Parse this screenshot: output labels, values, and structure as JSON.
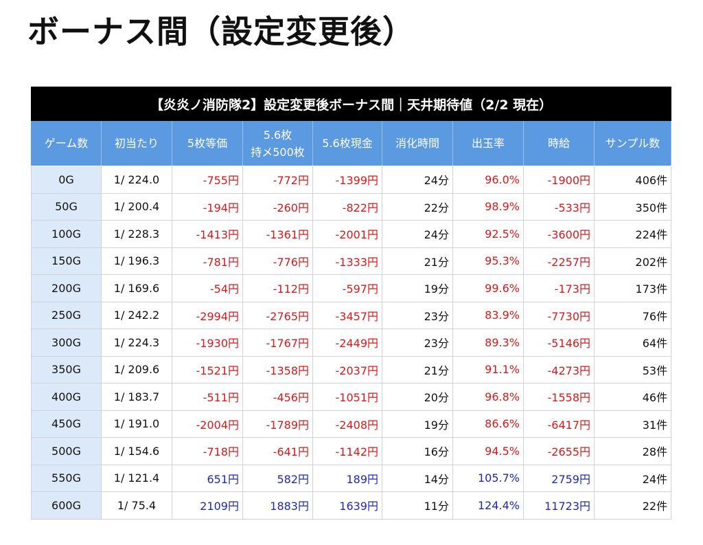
{
  "title": "ボーナス間（設定変更後）",
  "table": {
    "caption": "【炎炎ノ消防隊2】設定変更後ボーナス間｜天井期待値（2/2 現在）",
    "headers": [
      {
        "line1": "ゲーム数",
        "line2": ""
      },
      {
        "line1": "初当たり",
        "line2": ""
      },
      {
        "line1": "5枚等価",
        "line2": ""
      },
      {
        "line1": "5.6枚",
        "line2": "持メ500枚"
      },
      {
        "line1": "5.6枚現金",
        "line2": ""
      },
      {
        "line1": "消化時間",
        "line2": ""
      },
      {
        "line1": "出玉率",
        "line2": ""
      },
      {
        "line1": "時給",
        "line2": ""
      },
      {
        "line1": "サンプル数",
        "line2": ""
      }
    ],
    "rows": [
      {
        "game": "0G",
        "hit": "1/ 224.0",
        "eq5": "-755円",
        "m56": "-772円",
        "cash56": "-1399円",
        "time": "24分",
        "rate": "96.0%",
        "wage": "-1900円",
        "samples": "406件",
        "sign": "neg"
      },
      {
        "game": "50G",
        "hit": "1/ 200.4",
        "eq5": "-194円",
        "m56": "-260円",
        "cash56": "-822円",
        "time": "22分",
        "rate": "98.9%",
        "wage": "-533円",
        "samples": "350件",
        "sign": "neg"
      },
      {
        "game": "100G",
        "hit": "1/ 228.3",
        "eq5": "-1413円",
        "m56": "-1361円",
        "cash56": "-2001円",
        "time": "24分",
        "rate": "92.5%",
        "wage": "-3600円",
        "samples": "224件",
        "sign": "neg"
      },
      {
        "game": "150G",
        "hit": "1/ 196.3",
        "eq5": "-781円",
        "m56": "-776円",
        "cash56": "-1333円",
        "time": "21分",
        "rate": "95.3%",
        "wage": "-2257円",
        "samples": "202件",
        "sign": "neg"
      },
      {
        "game": "200G",
        "hit": "1/ 169.6",
        "eq5": "-54円",
        "m56": "-112円",
        "cash56": "-597円",
        "time": "19分",
        "rate": "99.6%",
        "wage": "-173円",
        "samples": "173件",
        "sign": "neg"
      },
      {
        "game": "250G",
        "hit": "1/ 242.2",
        "eq5": "-2994円",
        "m56": "-2765円",
        "cash56": "-3457円",
        "time": "23分",
        "rate": "83.9%",
        "wage": "-7730円",
        "samples": "76件",
        "sign": "neg"
      },
      {
        "game": "300G",
        "hit": "1/ 224.3",
        "eq5": "-1930円",
        "m56": "-1767円",
        "cash56": "-2449円",
        "time": "23分",
        "rate": "89.3%",
        "wage": "-5146円",
        "samples": "64件",
        "sign": "neg"
      },
      {
        "game": "350G",
        "hit": "1/ 209.6",
        "eq5": "-1521円",
        "m56": "-1358円",
        "cash56": "-2037円",
        "time": "21分",
        "rate": "91.1%",
        "wage": "-4273円",
        "samples": "53件",
        "sign": "neg"
      },
      {
        "game": "400G",
        "hit": "1/ 183.7",
        "eq5": "-511円",
        "m56": "-456円",
        "cash56": "-1051円",
        "time": "20分",
        "rate": "96.8%",
        "wage": "-1558円",
        "samples": "46件",
        "sign": "neg"
      },
      {
        "game": "450G",
        "hit": "1/ 191.0",
        "eq5": "-2004円",
        "m56": "-1789円",
        "cash56": "-2408円",
        "time": "19分",
        "rate": "86.6%",
        "wage": "-6417円",
        "samples": "31件",
        "sign": "neg"
      },
      {
        "game": "500G",
        "hit": "1/ 154.6",
        "eq5": "-718円",
        "m56": "-641円",
        "cash56": "-1142円",
        "time": "16分",
        "rate": "94.5%",
        "wage": "-2655円",
        "samples": "28件",
        "sign": "neg"
      },
      {
        "game": "550G",
        "hit": "1/ 121.4",
        "eq5": "651円",
        "m56": "582円",
        "cash56": "189円",
        "time": "14分",
        "rate": "105.7%",
        "wage": "2759円",
        "samples": "24件",
        "sign": "pos"
      },
      {
        "game": "600G",
        "hit": "1/ 75.4",
        "eq5": "2109円",
        "m56": "1883円",
        "cash56": "1639円",
        "time": "11分",
        "rate": "124.4%",
        "wage": "11723円",
        "samples": "22件",
        "sign": "pos"
      }
    ],
    "colors": {
      "caption_bg": "#000000",
      "header_bg": "#5b9ae0",
      "game_col_bg": "#dce9f8",
      "negative": "#d81818",
      "positive": "#1d28b4"
    }
  }
}
